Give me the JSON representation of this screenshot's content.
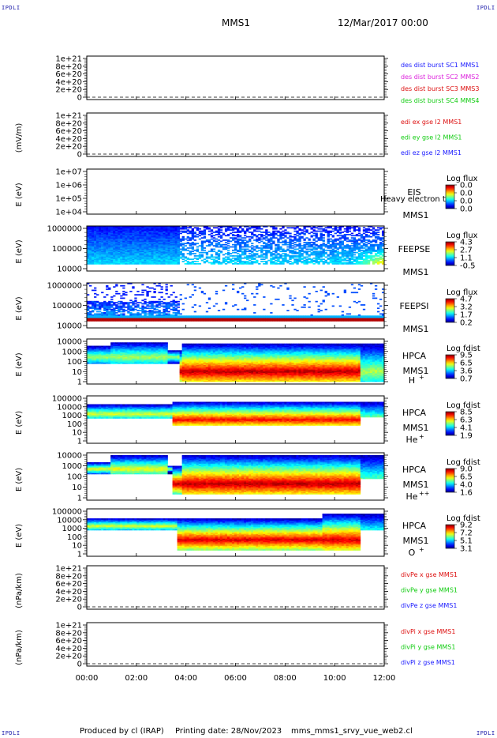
{
  "corner_labels": {
    "top_left": "IPDLI",
    "top_right": "IPDLI",
    "bottom_left": "IPDLI",
    "bottom_right": "IPDLI"
  },
  "header": {
    "spacecraft": "MMS1",
    "date": "12/Mar/2017 00:00"
  },
  "footer": {
    "produced_by": "Produced by cl (IRAP)",
    "printing_date": "Printing date: 28/Nov/2023",
    "file": "mms_mms1_srvy_vue_web2.cl"
  },
  "chart_data": {
    "type": "heatmap",
    "x_axis": {
      "ticks": [
        "00:00",
        "02:00",
        "04:00",
        "06:00",
        "08:00",
        "10:00",
        "12:00"
      ],
      "range_hours": [
        0,
        12
      ]
    },
    "panels": [
      {
        "id": "dist",
        "type": "line",
        "ylabel": "",
        "yticks": [
          "1e+21",
          "8e+20",
          "6e+20",
          "4e+20",
          "2e+20",
          "0"
        ],
        "legend": [
          {
            "text": "des dist burst SC1 MMS1",
            "color": "#1a1aff"
          },
          {
            "text": "des dist burst SC2 MMS2",
            "color": "#dd22dd"
          },
          {
            "text": "des dist burst SC3 MMS3",
            "color": "#dd1111"
          },
          {
            "text": "des dist burst SC4 MMS4",
            "color": "#11cc11"
          }
        ]
      },
      {
        "id": "edi",
        "type": "line",
        "ylabel": "(mV/m)",
        "yticks": [
          "1e+21",
          "8e+20",
          "6e+20",
          "4e+20",
          "2e+20",
          "0"
        ],
        "legend": [
          {
            "text": "edi ex gse l2 MMS1",
            "color": "#dd1111"
          },
          {
            "text": "edi ey gse l2 MMS1",
            "color": "#11cc11"
          },
          {
            "text": "edi ez gse l2 MMS1",
            "color": "#1a1aff"
          }
        ]
      },
      {
        "id": "eis",
        "type": "heatmap",
        "ylabel": "E (eV)",
        "yticks": [
          "1e+07",
          "1e+06",
          "1e+05",
          "1e+04"
        ],
        "labels": [
          "EIS",
          "MMS1"
        ],
        "overlay": "Heavy electron to",
        "cbar_title": "Log flux",
        "cbar_ticks": [
          "0.0",
          "0.0",
          "0.0",
          "0.0"
        ]
      },
      {
        "id": "feepse",
        "type": "heatmap",
        "ylabel": "E (eV)",
        "yticks": [
          "1000000",
          "100000",
          "10000"
        ],
        "labels": [
          "FEEPSE",
          "MMS1"
        ],
        "cbar_title": "Log flux",
        "cbar_ticks": [
          "4.3",
          "2.7",
          "1.1",
          "-0.5"
        ]
      },
      {
        "id": "feepsi",
        "type": "heatmap",
        "ylabel": "E (eV)",
        "yticks": [
          "1000000",
          "100000",
          "10000"
        ],
        "labels": [
          "FEEPSI",
          "MMS1"
        ],
        "cbar_title": "Log flux",
        "cbar_ticks": [
          "4.7",
          "3.2",
          "1.7",
          "0.2"
        ]
      },
      {
        "id": "hpca_h",
        "type": "heatmap",
        "ylabel": "E (eV)",
        "yticks": [
          "10000",
          "1000",
          "100",
          "10",
          "1"
        ],
        "labels": [
          "HPCA",
          "MMS1"
        ],
        "species": "H",
        "charge": "+",
        "cbar_title": "Log fdist",
        "cbar_ticks": [
          "9.5",
          "6.5",
          "3.6",
          "0.7"
        ]
      },
      {
        "id": "hpca_he",
        "type": "heatmap",
        "ylabel": "E (eV)",
        "yticks": [
          "100000",
          "10000",
          "1000",
          "100",
          "10",
          "1"
        ],
        "labels": [
          "HPCA",
          "MMS1"
        ],
        "species": "He",
        "charge": "+",
        "cbar_title": "Log fdist",
        "cbar_ticks": [
          "8.5",
          "6.3",
          "4.1",
          "1.9"
        ]
      },
      {
        "id": "hpca_he2",
        "type": "heatmap",
        "ylabel": "E (eV)",
        "yticks": [
          "10000",
          "1000",
          "100",
          "10",
          "1"
        ],
        "labels": [
          "HPCA",
          "MMS1"
        ],
        "species": "He",
        "charge": "++",
        "cbar_title": "Log fdist",
        "cbar_ticks": [
          "9.0",
          "6.5",
          "4.0",
          "1.6"
        ]
      },
      {
        "id": "hpca_o",
        "type": "heatmap",
        "ylabel": "E (eV)",
        "yticks": [
          "100000",
          "10000",
          "1000",
          "100",
          "10",
          "1"
        ],
        "labels": [
          "HPCA",
          "MMS1"
        ],
        "species": "O",
        "charge": "+",
        "cbar_title": "Log fdist",
        "cbar_ticks": [
          "9.2",
          "7.2",
          "5.1",
          "3.1"
        ]
      },
      {
        "id": "divpe",
        "type": "line",
        "ylabel": "(nPa/km)",
        "yticks": [
          "1e+21",
          "8e+20",
          "6e+20",
          "4e+20",
          "2e+20",
          "0"
        ],
        "legend": [
          {
            "text": "divPe x gse MMS1",
            "color": "#dd1111"
          },
          {
            "text": "divPe y gse MMS1",
            "color": "#11cc11"
          },
          {
            "text": "divPe z gse MMS1",
            "color": "#1a1aff"
          }
        ]
      },
      {
        "id": "divpi",
        "type": "line",
        "ylabel": "(nPa/km)",
        "yticks": [
          "1e+21",
          "8e+20",
          "6e+20",
          "4e+20",
          "2e+20",
          "0"
        ],
        "legend": [
          {
            "text": "divPi x gse MMS1",
            "color": "#dd1111"
          },
          {
            "text": "divPi y gse MMS1",
            "color": "#11cc11"
          },
          {
            "text": "divPi z gse MMS1",
            "color": "#1a1aff"
          }
        ]
      }
    ]
  }
}
